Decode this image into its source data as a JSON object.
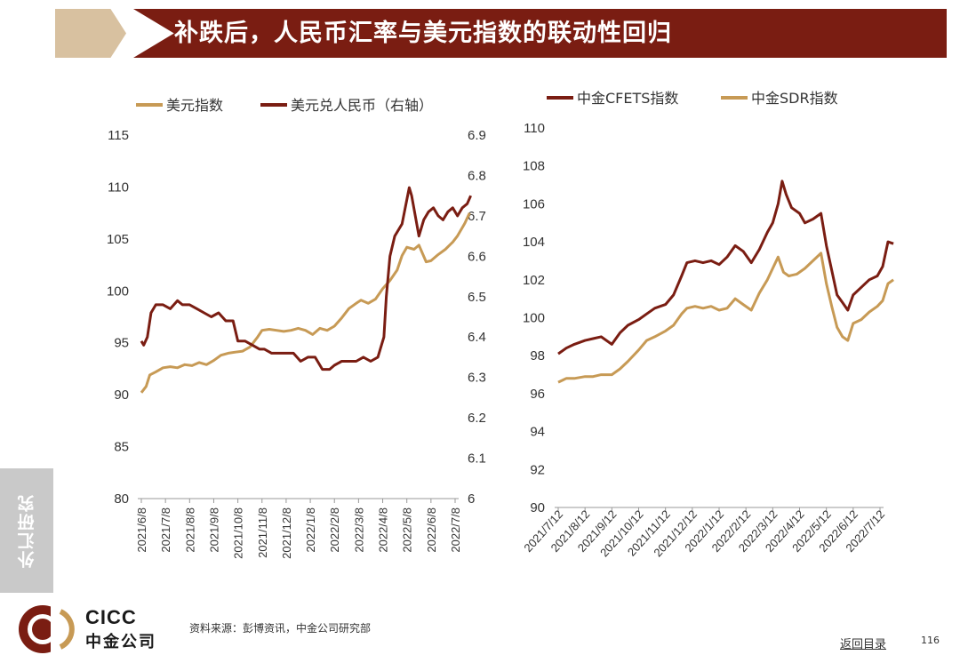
{
  "header": {
    "title": "补跌后，人民币汇率与美元指数的联动性回归"
  },
  "sidebar": {
    "tab_label": "外汇研究"
  },
  "footer": {
    "logo_en": "CICC",
    "logo_cn": "中金公司",
    "source": "资料来源：彭博资讯，中金公司研究部",
    "back_link": "返回目录",
    "page_number": "116"
  },
  "colors": {
    "banner": "#7a1d12",
    "banner_tab": "#d8c1a0",
    "dark_line": "#7a1d12",
    "gold_line": "#c79a55",
    "side_tab": "#c9c9c9"
  },
  "chart_data": [
    {
      "type": "line",
      "title": "",
      "legend_position": "top",
      "categories": [
        "2021/6/8",
        "2021/7/8",
        "2021/8/8",
        "2021/9/8",
        "2021/10/8",
        "2021/11/8",
        "2021/12/8",
        "2022/1/8",
        "2022/2/8",
        "2022/3/8",
        "2022/4/8",
        "2022/5/8",
        "2022/6/8",
        "2022/7/8"
      ],
      "y_left": {
        "min": 80,
        "max": 115,
        "ticks": [
          "80",
          "85",
          "90",
          "95",
          "100",
          "105",
          "110",
          "115"
        ]
      },
      "y_right": {
        "min": 6.0,
        "max": 6.9,
        "ticks": [
          "6",
          "6.1",
          "6.2",
          "6.3",
          "6.4",
          "6.5",
          "6.6",
          "6.7",
          "6.8",
          "6.9"
        ]
      },
      "series": [
        {
          "name": "美元指数",
          "axis": "left",
          "color": "#c79a55",
          "points": [
            [
              0,
              90.2
            ],
            [
              0.2,
              90.8
            ],
            [
              0.35,
              91.9
            ],
            [
              0.6,
              92.2
            ],
            [
              0.9,
              92.6
            ],
            [
              1.2,
              92.7
            ],
            [
              1.5,
              92.6
            ],
            [
              1.8,
              92.9
            ],
            [
              2.1,
              92.8
            ],
            [
              2.4,
              93.1
            ],
            [
              2.7,
              92.9
            ],
            [
              3.0,
              93.3
            ],
            [
              3.3,
              93.8
            ],
            [
              3.6,
              94.0
            ],
            [
              3.9,
              94.1
            ],
            [
              4.2,
              94.2
            ],
            [
              4.5,
              94.6
            ],
            [
              4.8,
              95.5
            ],
            [
              5.0,
              96.2
            ],
            [
              5.3,
              96.3
            ],
            [
              5.6,
              96.2
            ],
            [
              5.9,
              96.1
            ],
            [
              6.2,
              96.2
            ],
            [
              6.5,
              96.4
            ],
            [
              6.8,
              96.2
            ],
            [
              7.1,
              95.8
            ],
            [
              7.4,
              96.4
            ],
            [
              7.7,
              96.2
            ],
            [
              8.0,
              96.6
            ],
            [
              8.3,
              97.4
            ],
            [
              8.6,
              98.3
            ],
            [
              8.9,
              98.8
            ],
            [
              9.1,
              99.1
            ],
            [
              9.4,
              98.8
            ],
            [
              9.7,
              99.2
            ],
            [
              10.0,
              100.2
            ],
            [
              10.3,
              101.0
            ],
            [
              10.6,
              102.0
            ],
            [
              10.8,
              103.4
            ],
            [
              11.0,
              104.2
            ],
            [
              11.3,
              104.0
            ],
            [
              11.5,
              104.4
            ],
            [
              11.8,
              102.8
            ],
            [
              12.0,
              102.9
            ],
            [
              12.3,
              103.5
            ],
            [
              12.6,
              104.0
            ],
            [
              12.9,
              104.7
            ],
            [
              13.1,
              105.3
            ],
            [
              13.4,
              106.5
            ],
            [
              13.6,
              107.5
            ]
          ]
        },
        {
          "name": "美元兑人民币（右轴）",
          "axis": "right",
          "color": "#7a1d12",
          "points": [
            [
              0,
              6.39
            ],
            [
              0.1,
              6.38
            ],
            [
              0.25,
              6.4
            ],
            [
              0.4,
              6.46
            ],
            [
              0.6,
              6.48
            ],
            [
              0.9,
              6.48
            ],
            [
              1.2,
              6.47
            ],
            [
              1.5,
              6.49
            ],
            [
              1.7,
              6.48
            ],
            [
              2.0,
              6.48
            ],
            [
              2.3,
              6.47
            ],
            [
              2.6,
              6.46
            ],
            [
              2.9,
              6.45
            ],
            [
              3.2,
              6.46
            ],
            [
              3.5,
              6.44
            ],
            [
              3.8,
              6.44
            ],
            [
              4.0,
              6.39
            ],
            [
              4.3,
              6.39
            ],
            [
              4.6,
              6.38
            ],
            [
              4.9,
              6.37
            ],
            [
              5.1,
              6.37
            ],
            [
              5.4,
              6.36
            ],
            [
              5.7,
              6.36
            ],
            [
              6.0,
              6.36
            ],
            [
              6.3,
              6.36
            ],
            [
              6.6,
              6.34
            ],
            [
              6.9,
              6.35
            ],
            [
              7.2,
              6.35
            ],
            [
              7.5,
              6.32
            ],
            [
              7.8,
              6.32
            ],
            [
              8.0,
              6.33
            ],
            [
              8.3,
              6.34
            ],
            [
              8.6,
              6.34
            ],
            [
              8.9,
              6.34
            ],
            [
              9.2,
              6.35
            ],
            [
              9.5,
              6.34
            ],
            [
              9.8,
              6.35
            ],
            [
              10.05,
              6.4
            ],
            [
              10.15,
              6.5
            ],
            [
              10.3,
              6.6
            ],
            [
              10.5,
              6.65
            ],
            [
              10.8,
              6.68
            ],
            [
              11.0,
              6.74
            ],
            [
              11.1,
              6.77
            ],
            [
              11.2,
              6.75
            ],
            [
              11.35,
              6.7
            ],
            [
              11.5,
              6.65
            ],
            [
              11.7,
              6.69
            ],
            [
              11.9,
              6.71
            ],
            [
              12.1,
              6.72
            ],
            [
              12.3,
              6.7
            ],
            [
              12.5,
              6.69
            ],
            [
              12.7,
              6.71
            ],
            [
              12.9,
              6.72
            ],
            [
              13.1,
              6.7
            ],
            [
              13.3,
              6.72
            ],
            [
              13.5,
              6.73
            ],
            [
              13.65,
              6.75
            ]
          ]
        }
      ]
    },
    {
      "type": "line",
      "title": "",
      "legend_position": "top",
      "categories": [
        "2021/7/12",
        "2021/8/12",
        "2021/9/12",
        "2021/10/12",
        "2021/11/12",
        "2021/12/12",
        "2022/1/12",
        "2022/2/12",
        "2022/3/12",
        "2022/4/12",
        "2022/5/12",
        "2022/6/12",
        "2022/7/12"
      ],
      "y_left": {
        "min": 90,
        "max": 110,
        "ticks": [
          "90",
          "92",
          "94",
          "96",
          "98",
          "100",
          "102",
          "104",
          "106",
          "108",
          "110"
        ]
      },
      "series": [
        {
          "name": "中金CFETS指数",
          "axis": "left",
          "color": "#7a1d12",
          "points": [
            [
              0,
              98.1
            ],
            [
              0.3,
              98.4
            ],
            [
              0.6,
              98.6
            ],
            [
              1.0,
              98.8
            ],
            [
              1.3,
              98.9
            ],
            [
              1.6,
              99.0
            ],
            [
              2.0,
              98.6
            ],
            [
              2.3,
              99.2
            ],
            [
              2.6,
              99.6
            ],
            [
              3.0,
              99.9
            ],
            [
              3.3,
              100.2
            ],
            [
              3.6,
              100.5
            ],
            [
              4.0,
              100.7
            ],
            [
              4.3,
              101.2
            ],
            [
              4.6,
              102.2
            ],
            [
              4.8,
              102.9
            ],
            [
              5.1,
              103.0
            ],
            [
              5.4,
              102.9
            ],
            [
              5.7,
              103.0
            ],
            [
              6.0,
              102.8
            ],
            [
              6.3,
              103.2
            ],
            [
              6.6,
              103.8
            ],
            [
              6.9,
              103.5
            ],
            [
              7.2,
              102.9
            ],
            [
              7.5,
              103.6
            ],
            [
              7.8,
              104.5
            ],
            [
              8.0,
              105.0
            ],
            [
              8.2,
              106.0
            ],
            [
              8.35,
              107.2
            ],
            [
              8.5,
              106.5
            ],
            [
              8.7,
              105.8
            ],
            [
              9.0,
              105.5
            ],
            [
              9.2,
              105.0
            ],
            [
              9.5,
              105.2
            ],
            [
              9.8,
              105.5
            ],
            [
              10.0,
              103.8
            ],
            [
              10.2,
              102.5
            ],
            [
              10.4,
              101.2
            ],
            [
              10.6,
              100.8
            ],
            [
              10.8,
              100.4
            ],
            [
              11.0,
              101.2
            ],
            [
              11.3,
              101.6
            ],
            [
              11.6,
              102.0
            ],
            [
              11.9,
              102.2
            ],
            [
              12.1,
              102.7
            ],
            [
              12.3,
              104.0
            ],
            [
              12.5,
              103.9
            ]
          ]
        },
        {
          "name": "中金SDR指数",
          "axis": "left",
          "color": "#c79a55",
          "points": [
            [
              0,
              96.6
            ],
            [
              0.3,
              96.8
            ],
            [
              0.6,
              96.8
            ],
            [
              1.0,
              96.9
            ],
            [
              1.3,
              96.9
            ],
            [
              1.6,
              97.0
            ],
            [
              2.0,
              97.0
            ],
            [
              2.3,
              97.3
            ],
            [
              2.6,
              97.7
            ],
            [
              3.0,
              98.3
            ],
            [
              3.3,
              98.8
            ],
            [
              3.6,
              99.0
            ],
            [
              4.0,
              99.3
            ],
            [
              4.3,
              99.6
            ],
            [
              4.6,
              100.2
            ],
            [
              4.8,
              100.5
            ],
            [
              5.1,
              100.6
            ],
            [
              5.4,
              100.5
            ],
            [
              5.7,
              100.6
            ],
            [
              6.0,
              100.4
            ],
            [
              6.3,
              100.5
            ],
            [
              6.6,
              101.0
            ],
            [
              6.9,
              100.7
            ],
            [
              7.2,
              100.4
            ],
            [
              7.5,
              101.3
            ],
            [
              7.8,
              102.0
            ],
            [
              8.0,
              102.6
            ],
            [
              8.2,
              103.2
            ],
            [
              8.4,
              102.4
            ],
            [
              8.6,
              102.2
            ],
            [
              8.9,
              102.3
            ],
            [
              9.2,
              102.6
            ],
            [
              9.5,
              103.0
            ],
            [
              9.8,
              103.4
            ],
            [
              10.0,
              101.8
            ],
            [
              10.2,
              100.6
            ],
            [
              10.4,
              99.5
            ],
            [
              10.6,
              99.0
            ],
            [
              10.8,
              98.8
            ],
            [
              11.0,
              99.7
            ],
            [
              11.3,
              99.9
            ],
            [
              11.6,
              100.3
            ],
            [
              11.9,
              100.6
            ],
            [
              12.1,
              100.9
            ],
            [
              12.3,
              101.8
            ],
            [
              12.5,
              102.0
            ]
          ]
        }
      ]
    }
  ]
}
